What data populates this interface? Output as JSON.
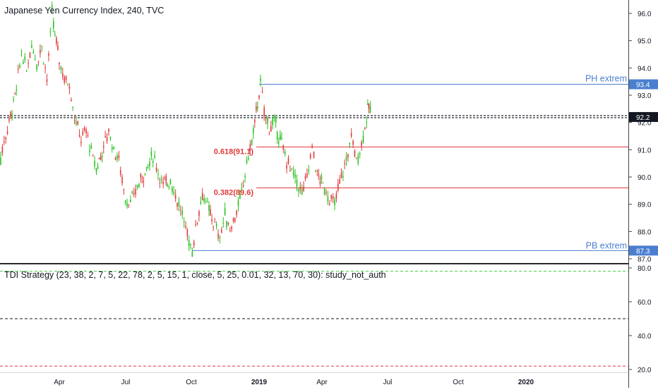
{
  "header": {
    "title": "Japanese Yen Currency Index, 240, TVC"
  },
  "indicator": {
    "title": "TDI Strategy (23, 38, 2, 7, 5, 22, 78, 2, 5, 15, 1, close, 5, 25, 0.01, 32, 13, 70, 30): study_not_auth"
  },
  "colors": {
    "up": "#26c21c",
    "down": "#e03a3a",
    "hline_blue": "#4a7fd0",
    "hline_red": "#e03a3a",
    "dash_green": "#3bcc3b",
    "dash_red": "#e03a3a"
  },
  "chart_data": [
    {
      "type": "line",
      "title": "Japanese Yen Currency Index, 240, TVC",
      "ylim": [
        86.8,
        96.5
      ],
      "y_ticks": [
        87.0,
        88.0,
        89.0,
        90.0,
        91.0,
        92.0,
        93.0,
        94.0,
        95.0,
        96.0
      ],
      "x_ticks": [
        "Apr",
        "Jul",
        "Oct",
        "2019",
        "Apr",
        "Jul",
        "Oct",
        "2020"
      ],
      "price_path": [
        [
          "2018-01-01",
          89.7
        ],
        [
          "2018-01-08",
          90.4
        ],
        [
          "2018-01-15",
          91.3
        ],
        [
          "2018-01-22",
          92.0
        ],
        [
          "2018-02-01",
          93.2
        ],
        [
          "2018-02-08",
          94.6
        ],
        [
          "2018-02-15",
          93.9
        ],
        [
          "2018-02-22",
          94.9
        ],
        [
          "2018-03-01",
          94.2
        ],
        [
          "2018-03-08",
          94.8
        ],
        [
          "2018-03-15",
          93.6
        ],
        [
          "2018-03-22",
          96.0
        ],
        [
          "2018-03-26",
          95.2
        ],
        [
          "2018-04-01",
          94.3
        ],
        [
          "2018-04-08",
          93.6
        ],
        [
          "2018-04-15",
          93.4
        ],
        [
          "2018-04-22",
          92.2
        ],
        [
          "2018-05-01",
          91.4
        ],
        [
          "2018-05-08",
          91.7
        ],
        [
          "2018-05-15",
          90.9
        ],
        [
          "2018-05-22",
          90.3
        ],
        [
          "2018-06-01",
          91.1
        ],
        [
          "2018-06-08",
          91.7
        ],
        [
          "2018-06-15",
          91.0
        ],
        [
          "2018-06-22",
          90.6
        ],
        [
          "2018-07-01",
          89.2
        ],
        [
          "2018-07-08",
          89.0
        ],
        [
          "2018-07-15",
          89.5
        ],
        [
          "2018-07-22",
          89.9
        ],
        [
          "2018-08-01",
          90.4
        ],
        [
          "2018-08-08",
          90.8
        ],
        [
          "2018-08-15",
          90.2
        ],
        [
          "2018-08-22",
          89.7
        ],
        [
          "2018-09-01",
          89.9
        ],
        [
          "2018-09-08",
          89.3
        ],
        [
          "2018-09-15",
          88.8
        ],
        [
          "2018-09-22",
          88.1
        ],
        [
          "2018-10-01",
          87.3
        ],
        [
          "2018-10-08",
          88.5
        ],
        [
          "2018-10-15",
          89.4
        ],
        [
          "2018-10-22",
          88.9
        ],
        [
          "2018-11-01",
          88.2
        ],
        [
          "2018-11-08",
          87.8
        ],
        [
          "2018-11-15",
          88.6
        ],
        [
          "2018-11-22",
          88.1
        ],
        [
          "2018-12-01",
          88.7
        ],
        [
          "2018-12-08",
          89.4
        ],
        [
          "2018-12-15",
          90.5
        ],
        [
          "2018-12-22",
          91.3
        ],
        [
          "2019-01-03",
          93.4
        ],
        [
          "2019-01-08",
          92.4
        ],
        [
          "2019-01-15",
          91.8
        ],
        [
          "2019-01-22",
          92.0
        ],
        [
          "2019-02-01",
          91.2
        ],
        [
          "2019-02-08",
          90.6
        ],
        [
          "2019-02-15",
          90.2
        ],
        [
          "2019-02-22",
          89.8
        ],
        [
          "2019-03-01",
          89.4
        ],
        [
          "2019-03-08",
          90.0
        ],
        [
          "2019-03-15",
          91.1
        ],
        [
          "2019-03-22",
          90.1
        ],
        [
          "2019-04-01",
          89.6
        ],
        [
          "2019-04-08",
          89.2
        ],
        [
          "2019-04-15",
          89.0
        ],
        [
          "2019-04-22",
          89.8
        ],
        [
          "2019-05-01",
          90.6
        ],
        [
          "2019-05-08",
          91.5
        ],
        [
          "2019-05-15",
          90.6
        ],
        [
          "2019-05-22",
          91.2
        ],
        [
          "2019-05-29",
          92.2
        ],
        [
          "2019-06-01",
          92.6
        ],
        [
          "2019-06-05",
          92.2
        ]
      ]
    },
    {
      "type": "line",
      "title": "TDI Strategy (23, 38, 2, 7, 5, 22, 78, 2, 5, 15, 1, close, 5, 25, 0.01, 32, 13, 70, 30): study_not_auth",
      "ylim": [
        18,
        82
      ],
      "y_ticks": [
        20.0,
        40.0,
        60.0,
        80.0
      ],
      "levels": [
        {
          "value": 78,
          "color": "#3bcc3b",
          "style": "dashed"
        },
        {
          "value": 50,
          "color": "#131722",
          "style": "dashed"
        },
        {
          "value": 22,
          "color": "#e03a3a",
          "style": "dashed"
        }
      ]
    }
  ],
  "levels": {
    "ph": {
      "label": "PH extrem",
      "value": 93.4,
      "badge": "93.4",
      "from": "2019-01-01"
    },
    "pb": {
      "label": "PB extrem",
      "value": 87.3,
      "badge": "87.3",
      "from": "2018-10-01"
    },
    "fib618": {
      "label": "0.618(91.1)",
      "value": 91.1
    },
    "fib382": {
      "label": "0.382(89.6)",
      "value": 89.6
    },
    "last": {
      "value": 92.2,
      "badge": "92.2"
    }
  },
  "axes": {
    "main_ticks": [
      "96.0",
      "95.0",
      "94.0",
      "93.0",
      "92.0",
      "91.0",
      "90.0",
      "89.0",
      "88.0",
      "87.0"
    ],
    "ind_ticks": [
      "80.0",
      "60.0",
      "40.0",
      "20.0"
    ],
    "time_labels": [
      "Apr",
      "Jul",
      "Oct",
      "2019",
      "Apr",
      "Jul",
      "Oct",
      "2020"
    ]
  }
}
